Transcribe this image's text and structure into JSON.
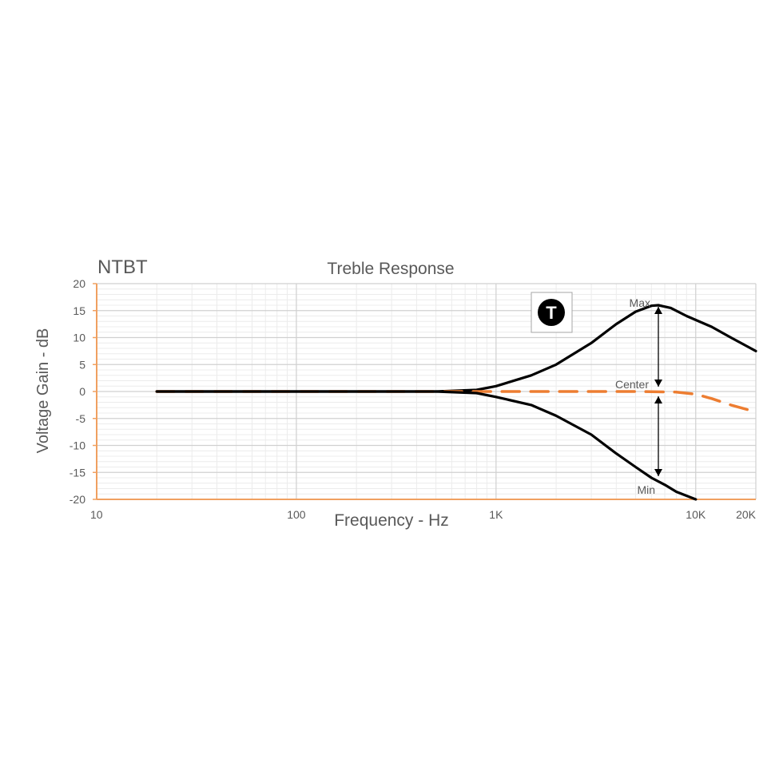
{
  "chart_data": {
    "type": "line",
    "corner_label": "NTBT",
    "title": "Treble Response",
    "xlabel": "Frequency - Hz",
    "ylabel": "Voltage Gain - dB",
    "x_scale": "log",
    "xlim": [
      10,
      20000
    ],
    "ylim": [
      -20,
      20
    ],
    "grid": true,
    "x_ticks": [
      {
        "value": 10,
        "label": "10"
      },
      {
        "value": 100,
        "label": "100"
      },
      {
        "value": 1000,
        "label": "1K"
      },
      {
        "value": 10000,
        "label": "10K"
      },
      {
        "value": 20000,
        "label": "20K"
      }
    ],
    "y_ticks": [
      20,
      15,
      10,
      5,
      0,
      -5,
      -10,
      -15,
      -20
    ],
    "badge": "T",
    "annotations": [
      {
        "text": "Max",
        "x": 6500,
        "y": 16
      },
      {
        "text": "Center",
        "x": 6500,
        "y": 0
      },
      {
        "text": "Min",
        "x": 6500,
        "y": -16
      }
    ],
    "series": [
      {
        "name": "Max",
        "style": "solid",
        "color": "#000000",
        "points": [
          [
            20,
            0
          ],
          [
            100,
            0
          ],
          [
            500,
            0
          ],
          [
            800,
            0.3
          ],
          [
            1000,
            1
          ],
          [
            1500,
            3
          ],
          [
            2000,
            5
          ],
          [
            3000,
            9
          ],
          [
            4000,
            12.5
          ],
          [
            5000,
            14.8
          ],
          [
            6000,
            15.9
          ],
          [
            6500,
            16
          ],
          [
            7500,
            15.5
          ],
          [
            9000,
            14
          ],
          [
            12000,
            12
          ],
          [
            15000,
            10
          ],
          [
            20000,
            7.5
          ]
        ]
      },
      {
        "name": "Center",
        "style": "dashed",
        "color": "#ed7d31",
        "points": [
          [
            20,
            0
          ],
          [
            100,
            0
          ],
          [
            1000,
            0
          ],
          [
            5000,
            0
          ],
          [
            8000,
            -0.1
          ],
          [
            10000,
            -0.5
          ],
          [
            12000,
            -1.3
          ],
          [
            15000,
            -2.5
          ],
          [
            20000,
            -3.8
          ]
        ]
      },
      {
        "name": "Min",
        "style": "solid",
        "color": "#000000",
        "points": [
          [
            20,
            0
          ],
          [
            100,
            0
          ],
          [
            500,
            0
          ],
          [
            800,
            -0.3
          ],
          [
            1000,
            -1
          ],
          [
            1500,
            -2.5
          ],
          [
            2000,
            -4.5
          ],
          [
            3000,
            -8
          ],
          [
            4000,
            -11.5
          ],
          [
            5000,
            -14
          ],
          [
            6000,
            -16
          ],
          [
            7000,
            -17.3
          ],
          [
            8000,
            -18.6
          ],
          [
            10000,
            -20
          ]
        ]
      }
    ],
    "colors": {
      "axis": "#f0a060",
      "grid_major": "#d0d0d0",
      "grid_minor": "#ececec",
      "text": "#595959"
    }
  }
}
